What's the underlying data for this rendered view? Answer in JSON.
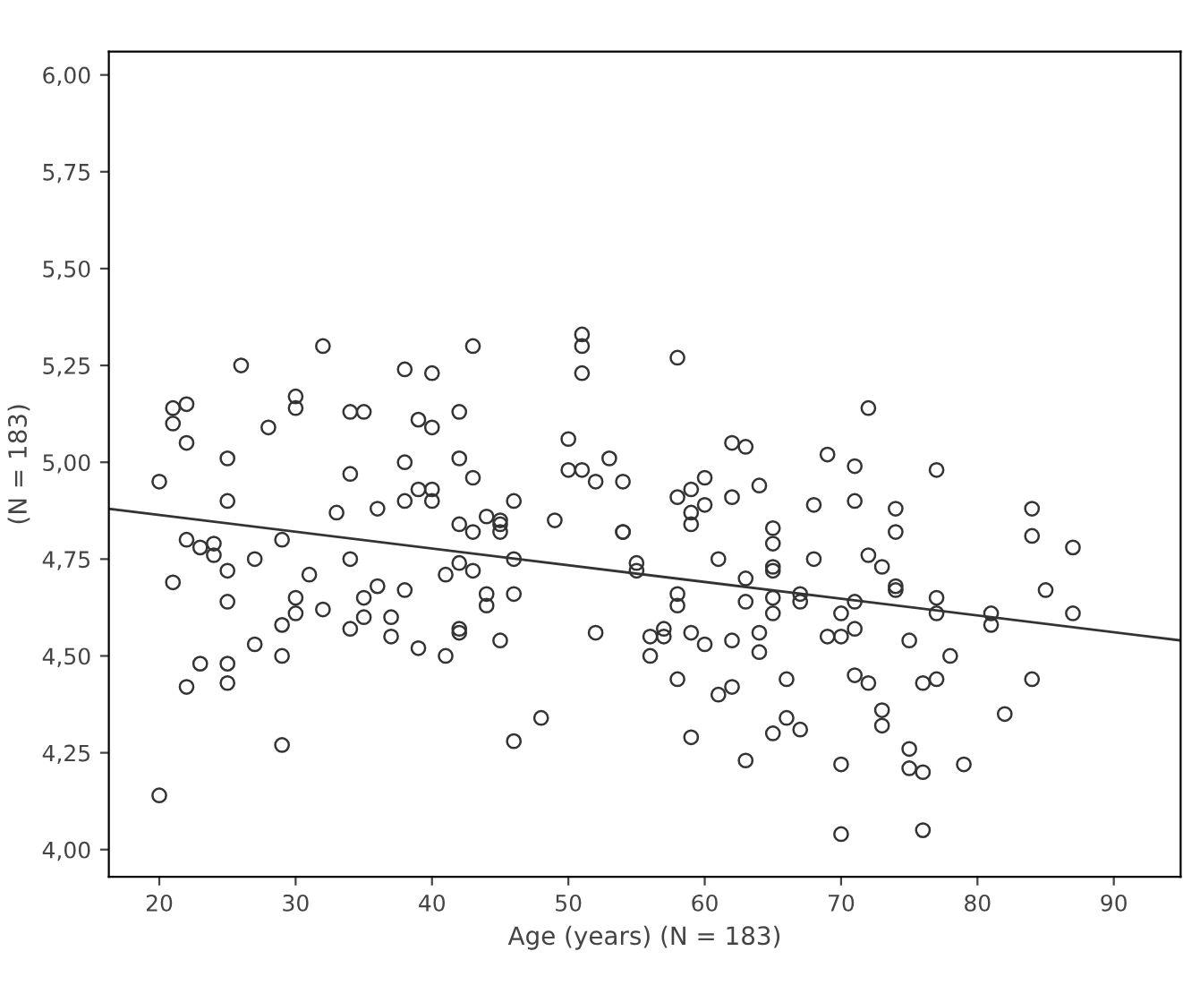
{
  "chart_data": {
    "type": "scatter",
    "xlabel": "Age (years) (N = 183)",
    "ylabel": "(N = 183)",
    "xlim": [
      16.3,
      94.9
    ],
    "ylim": [
      3.93,
      6.06
    ],
    "xticks": [
      20,
      30,
      40,
      50,
      60,
      70,
      80,
      90
    ],
    "yticks": [
      {
        "value": 4.0,
        "label": "4,00"
      },
      {
        "value": 4.25,
        "label": "4,25"
      },
      {
        "value": 4.5,
        "label": "4,50"
      },
      {
        "value": 4.75,
        "label": "4,75"
      },
      {
        "value": 5.0,
        "label": "5,00"
      },
      {
        "value": 5.25,
        "label": "5,25"
      },
      {
        "value": 5.5,
        "label": "5,50"
      },
      {
        "value": 5.75,
        "label": "5,75"
      },
      {
        "value": 6.0,
        "label": "6,00"
      }
    ],
    "grid": false,
    "legend": false,
    "series": [
      {
        "marker": "circle",
        "color": "#333333",
        "x": [
          20,
          20,
          21,
          21,
          21,
          22,
          22,
          22,
          22,
          23,
          23,
          24,
          24,
          25,
          25,
          25,
          25,
          25,
          25,
          26,
          27,
          27,
          28,
          29,
          29,
          29,
          29,
          30,
          30,
          30,
          30,
          31,
          32,
          32,
          33,
          34,
          34,
          34,
          34,
          35,
          35,
          35,
          36,
          36,
          37,
          37,
          38,
          38,
          38,
          38,
          39,
          39,
          39,
          40,
          40,
          40,
          40,
          41,
          41,
          42,
          42,
          42,
          42,
          42,
          42,
          43,
          43,
          43,
          43,
          44,
          44,
          44,
          45,
          45,
          45,
          45,
          46,
          46,
          46,
          46,
          48,
          49,
          50,
          50,
          51,
          51,
          51,
          51,
          52,
          52,
          53,
          54,
          54,
          54,
          55,
          55,
          56,
          56,
          57,
          57,
          58,
          58,
          58,
          58,
          58,
          59,
          59,
          59,
          59,
          59,
          60,
          60,
          60,
          61,
          61,
          62,
          62,
          62,
          62,
          63,
          63,
          63,
          63,
          64,
          64,
          64,
          65,
          65,
          65,
          65,
          65,
          65,
          65,
          66,
          66,
          67,
          67,
          67,
          68,
          68,
          69,
          69,
          70,
          70,
          70,
          70,
          71,
          71,
          71,
          71,
          71,
          72,
          72,
          72,
          73,
          73,
          73,
          74,
          74,
          74,
          74,
          75,
          75,
          75,
          76,
          76,
          76,
          77,
          77,
          77,
          77,
          78,
          79,
          81,
          81,
          82,
          84,
          84,
          84,
          85,
          87,
          87
        ],
        "values": [
          4.95,
          4.14,
          5.14,
          5.1,
          4.69,
          5.15,
          5.05,
          4.8,
          4.42,
          4.78,
          4.48,
          4.76,
          4.79,
          5.01,
          4.9,
          4.72,
          4.64,
          4.48,
          4.43,
          5.25,
          4.75,
          4.53,
          5.09,
          4.8,
          4.58,
          4.5,
          4.27,
          5.17,
          5.14,
          4.65,
          4.61,
          4.71,
          5.3,
          4.62,
          4.87,
          5.13,
          4.97,
          4.75,
          4.57,
          5.13,
          4.65,
          4.6,
          4.68,
          4.88,
          4.6,
          4.55,
          5.24,
          4.9,
          5.0,
          4.67,
          5.11,
          4.93,
          4.52,
          5.23,
          5.09,
          4.93,
          4.9,
          4.71,
          4.5,
          5.13,
          5.01,
          4.84,
          4.74,
          4.57,
          4.56,
          5.3,
          4.96,
          4.72,
          4.82,
          4.86,
          4.66,
          4.63,
          4.85,
          4.84,
          4.82,
          4.54,
          4.9,
          4.75,
          4.66,
          4.28,
          4.34,
          4.85,
          5.06,
          4.98,
          5.33,
          5.3,
          5.23,
          4.98,
          4.56,
          4.95,
          5.01,
          4.95,
          4.82,
          4.82,
          4.74,
          4.72,
          4.55,
          4.5,
          4.57,
          4.55,
          5.27,
          4.66,
          4.63,
          4.44,
          4.91,
          4.87,
          4.93,
          4.84,
          4.56,
          4.29,
          4.96,
          4.89,
          4.53,
          4.75,
          4.4,
          5.05,
          4.91,
          4.54,
          4.42,
          5.04,
          4.7,
          4.64,
          4.23,
          4.94,
          4.56,
          4.51,
          4.83,
          4.79,
          4.73,
          4.72,
          4.65,
          4.61,
          4.3,
          4.44,
          4.34,
          4.66,
          4.64,
          4.31,
          4.89,
          4.75,
          5.02,
          4.55,
          4.61,
          4.55,
          4.22,
          4.04,
          4.99,
          4.9,
          4.64,
          4.57,
          4.45,
          5.14,
          4.76,
          4.43,
          4.73,
          4.36,
          4.32,
          4.88,
          4.82,
          4.68,
          4.67,
          4.54,
          4.26,
          4.21,
          4.43,
          4.2,
          4.05,
          4.98,
          4.65,
          4.61,
          4.44,
          4.5,
          4.22,
          4.61,
          4.58,
          4.35,
          4.88,
          4.81,
          4.44,
          4.67,
          4.78,
          4.61
        ]
      },
      {
        "type": "line",
        "color": "#333333",
        "x": [
          16.3,
          94.9
        ],
        "values": [
          4.88,
          4.54
        ]
      }
    ]
  }
}
